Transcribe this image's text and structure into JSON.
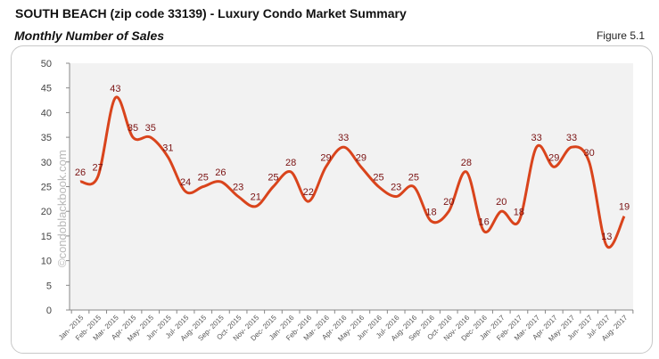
{
  "header": {
    "title": "SOUTH BEACH (zip code 33139) - Luxury Condo Market Summary",
    "subtitle": "Monthly Number of Sales",
    "figure": "Figure 5.1"
  },
  "watermark": "©condoblackbook.com",
  "chart_data": {
    "type": "line",
    "title": "Monthly Number of Sales",
    "xlabel": "",
    "ylabel": "",
    "ylim": [
      0,
      50
    ],
    "yticks": [
      0,
      5,
      10,
      15,
      20,
      25,
      30,
      35,
      40,
      45,
      50
    ],
    "grid": false,
    "line_color": "#d9441c",
    "label_color": "#7a1212",
    "plot_background": "#f2f2f2",
    "categories": [
      "Jan- 2015",
      "Feb- 2015",
      "Mar- 2015",
      "Apr- 2015",
      "May- 2015",
      "Jun- 2015",
      "Jul- 2015",
      "Aug- 2015",
      "Sep- 2015",
      "Oct- 2015",
      "Nov- 2015",
      "Dec- 2015",
      "Jan- 2016",
      "Feb- 2016",
      "Mar- 2016",
      "Apr- 2016",
      "May- 2016",
      "Jun- 2016",
      "Jul- 2016",
      "Aug- 2016",
      "Sep- 2016",
      "Oct- 2016",
      "Nov- 2016",
      "Dec- 2016",
      "Jan- 2017",
      "Feb- 2017",
      "Mar- 2017",
      "Apr- 2017",
      "May- 2017",
      "Jun- 2017",
      "Jul- 2017",
      "Aug- 2017"
    ],
    "values": [
      26,
      27,
      43,
      35,
      35,
      31,
      24,
      25,
      26,
      23,
      21,
      25,
      28,
      22,
      29,
      33,
      29,
      25,
      23,
      25,
      18,
      20,
      28,
      16,
      20,
      18,
      33,
      29,
      33,
      30,
      13,
      19
    ]
  }
}
